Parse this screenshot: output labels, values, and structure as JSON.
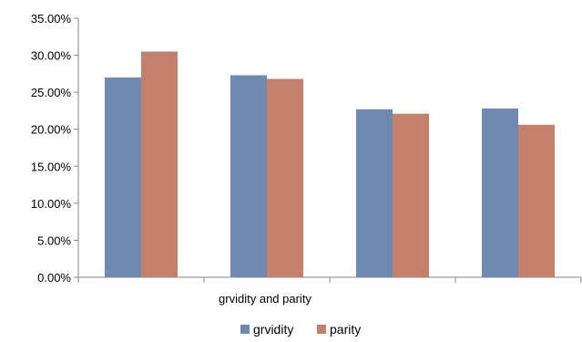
{
  "chart_data": {
    "type": "bar",
    "title": "",
    "xlabel": "grvidity and parity",
    "ylabel": "",
    "categories": [
      "",
      "",
      "",
      ""
    ],
    "series": [
      {
        "name": "grvidity",
        "values": [
          27.0,
          27.3,
          22.7,
          22.8
        ],
        "color": "#7089b0"
      },
      {
        "name": "parity",
        "values": [
          30.5,
          26.8,
          22.1,
          20.6
        ],
        "color": "#c3806a"
      }
    ],
    "ylim": [
      0,
      35
    ],
    "yticks": [
      "0.00%",
      "5.00%",
      "10.00%",
      "15.00%",
      "20.00%",
      "25.00%",
      "30.00%",
      "35.00%"
    ],
    "grid": false,
    "legend_position": "bottom"
  }
}
